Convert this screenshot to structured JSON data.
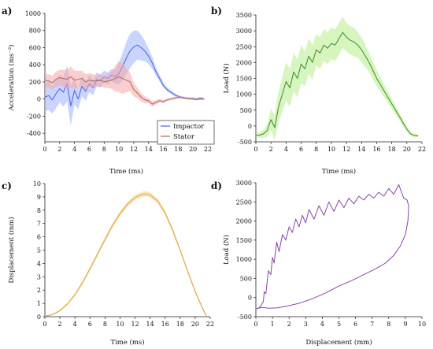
{
  "figure": {
    "panel_labels": [
      "a)",
      "b)",
      "c)",
      "d)"
    ]
  },
  "colors": {
    "impactor": "#4a66d6",
    "impactor_band": "#9db3ff",
    "stator": "#b06a55",
    "stator_band": "#f5a5a5",
    "load": "#3e8a2a",
    "load_band": "#b6ec8a",
    "displacement": "#e0a640",
    "displacement_band": "#f1cf94",
    "hysteresis": "#8a45a8"
  },
  "chart_data": [
    {
      "type": "line",
      "panel": "a)",
      "xlabel": "Time (ms)",
      "ylabel": "Acceleration (ms⁻²)",
      "xlim": [
        0,
        22
      ],
      "ylim": [
        -500,
        1000
      ],
      "xticks": [
        "0",
        "2",
        "4",
        "6",
        "8",
        "10",
        "12",
        "14",
        "16",
        "18",
        "20",
        "22"
      ],
      "yticks": [
        "-400",
        "-200",
        "0",
        "200",
        "400",
        "600",
        "800",
        "1000"
      ],
      "legend": "bottom-right",
      "series": [
        {
          "name": "Impactor",
          "x": [
            0,
            0.5,
            1,
            1.5,
            2,
            2.5,
            3,
            3.5,
            4,
            4.5,
            5,
            5.5,
            6,
            6.5,
            7,
            7.5,
            8,
            8.5,
            9,
            9.5,
            10,
            10.5,
            11,
            11.5,
            12,
            12.5,
            13,
            13.5,
            14,
            14.5,
            15,
            15.5,
            16,
            16.5,
            17,
            17.5,
            18,
            18.5,
            19,
            19.5,
            20,
            20.5,
            21,
            21.5
          ],
          "y": [
            20,
            40,
            -10,
            60,
            120,
            80,
            180,
            -80,
            100,
            0,
            150,
            90,
            180,
            130,
            230,
            210,
            260,
            240,
            280,
            260,
            300,
            380,
            480,
            560,
            610,
            630,
            600,
            560,
            500,
            420,
            320,
            240,
            160,
            110,
            80,
            50,
            30,
            20,
            10,
            5,
            5,
            0,
            10,
            0
          ],
          "spread": [
            160,
            170,
            160,
            170,
            160,
            170,
            210,
            230,
            160,
            120,
            120,
            110,
            100,
            90,
            80,
            80,
            70,
            70,
            70,
            80,
            130,
            160,
            190,
            200,
            190,
            170,
            150,
            120,
            90,
            70,
            50,
            40,
            30,
            25,
            20,
            20,
            15,
            15,
            15,
            15,
            15,
            15,
            15,
            15
          ]
        },
        {
          "name": "Stator",
          "x": [
            0,
            0.5,
            1,
            1.5,
            2,
            2.5,
            3,
            3.5,
            4,
            4.5,
            5,
            5.5,
            6,
            6.5,
            7,
            7.5,
            8,
            8.5,
            9,
            9.5,
            10,
            10.5,
            11,
            11.5,
            12,
            12.5,
            13,
            13.5,
            14,
            14.5,
            15,
            15.5,
            16,
            16.5,
            17,
            17.5,
            18,
            18.5,
            19,
            19.5,
            20,
            20.5,
            21,
            21.5
          ],
          "y": [
            220,
            210,
            190,
            230,
            250,
            240,
            230,
            260,
            220,
            230,
            240,
            200,
            220,
            210,
            210,
            220,
            200,
            210,
            220,
            240,
            260,
            240,
            220,
            200,
            110,
            70,
            20,
            -10,
            -20,
            -60,
            -40,
            -20,
            -30,
            -10,
            0,
            10,
            20,
            15,
            10,
            5,
            0,
            -5,
            0,
            0
          ],
          "spread": [
            70,
            80,
            80,
            90,
            90,
            100,
            110,
            120,
            110,
            100,
            90,
            90,
            80,
            80,
            70,
            70,
            70,
            80,
            100,
            150,
            180,
            180,
            140,
            110,
            80,
            60,
            50,
            40,
            30,
            30,
            25,
            20,
            20,
            15,
            15,
            15,
            15,
            10,
            10,
            10,
            10,
            10,
            10,
            10
          ]
        }
      ]
    },
    {
      "type": "line",
      "panel": "b)",
      "xlabel": "Time (ms)",
      "ylabel": "Load (N)",
      "xlim": [
        0,
        22
      ],
      "ylim": [
        -500,
        3500
      ],
      "xticks": [
        "0",
        "2",
        "4",
        "6",
        "8",
        "10",
        "12",
        "14",
        "16",
        "18",
        "20",
        "22"
      ],
      "yticks": [
        "-500",
        "0",
        "500",
        "1000",
        "1500",
        "2000",
        "2500",
        "3000",
        "3500"
      ],
      "series": [
        {
          "name": "",
          "x": [
            0,
            0.5,
            1,
            1.5,
            2,
            2.5,
            3,
            3.5,
            4,
            4.5,
            5,
            5.5,
            6,
            6.5,
            7,
            7.5,
            8,
            8.5,
            9,
            9.5,
            10,
            10.5,
            11,
            11.5,
            12,
            12.5,
            13,
            13.5,
            14,
            14.5,
            15,
            15.5,
            16,
            16.5,
            17,
            17.5,
            18,
            18.5,
            19,
            19.5,
            20,
            20.5,
            21,
            21.5
          ],
          "y": [
            -300,
            -290,
            -250,
            -150,
            200,
            -50,
            600,
            1000,
            1400,
            1200,
            1700,
            1500,
            1950,
            1800,
            2200,
            2000,
            2400,
            2300,
            2550,
            2450,
            2600,
            2550,
            2750,
            2950,
            2800,
            2700,
            2650,
            2550,
            2400,
            2200,
            2000,
            1750,
            1500,
            1300,
            1100,
            900,
            700,
            500,
            300,
            100,
            -100,
            -250,
            -300,
            -310
          ],
          "spread": [
            60,
            80,
            120,
            200,
            320,
            400,
            500,
            550,
            600,
            600,
            600,
            600,
            600,
            550,
            550,
            550,
            500,
            500,
            500,
            500,
            500,
            500,
            500,
            500,
            450,
            450,
            450,
            400,
            400,
            350,
            300,
            280,
            250,
            220,
            200,
            180,
            160,
            140,
            120,
            100,
            80,
            60,
            50,
            40
          ]
        }
      ]
    },
    {
      "type": "line",
      "panel": "c)",
      "xlabel": "Time (ms)",
      "ylabel": "Displacement (mm)",
      "xlim": [
        0,
        22
      ],
      "ylim": [
        0,
        10
      ],
      "xticks": [
        "0",
        "2",
        "4",
        "6",
        "8",
        "10",
        "12",
        "14",
        "16",
        "18",
        "20",
        "22"
      ],
      "yticks": [
        "0",
        "1",
        "2",
        "3",
        "4",
        "5",
        "6",
        "7",
        "8",
        "9",
        "10"
      ],
      "series": [
        {
          "name": "",
          "x": [
            0,
            1,
            2,
            3,
            4,
            5,
            6,
            7,
            8,
            9,
            10,
            11,
            12,
            13,
            13.6,
            14,
            15,
            16,
            17,
            18,
            19,
            20,
            21,
            21.5
          ],
          "y": [
            0.05,
            0.15,
            0.45,
            0.95,
            1.65,
            2.55,
            3.6,
            4.7,
            5.8,
            6.85,
            7.75,
            8.45,
            8.95,
            9.2,
            9.22,
            9.15,
            8.7,
            7.8,
            6.5,
            5.0,
            3.4,
            1.9,
            0.6,
            0.05
          ],
          "spread": [
            0.05,
            0.06,
            0.08,
            0.1,
            0.12,
            0.14,
            0.16,
            0.17,
            0.18,
            0.19,
            0.2,
            0.2,
            0.2,
            0.2,
            0.2,
            0.2,
            0.2,
            0.19,
            0.18,
            0.17,
            0.16,
            0.15,
            0.12,
            0.1
          ]
        }
      ]
    },
    {
      "type": "line",
      "panel": "d)",
      "xlabel": "Displacement (mm)",
      "ylabel": "Load (N)",
      "xlim": [
        0,
        10
      ],
      "ylim": [
        -500,
        3000
      ],
      "xticks": [
        "0",
        "1",
        "2",
        "3",
        "4",
        "5",
        "6",
        "7",
        "8",
        "9",
        "10"
      ],
      "yticks": [
        "-500",
        "0",
        "500",
        "1000",
        "1500",
        "2000",
        "2500",
        "3000"
      ],
      "series": [
        {
          "name": "",
          "x": [
            0.0,
            0.15,
            0.3,
            0.45,
            0.5,
            0.6,
            0.75,
            0.9,
            1.0,
            1.1,
            1.25,
            1.4,
            1.6,
            1.8,
            2.0,
            2.2,
            2.4,
            2.6,
            2.8,
            3.0,
            3.2,
            3.5,
            3.8,
            4.1,
            4.4,
            4.7,
            5.0,
            5.3,
            5.6,
            5.9,
            6.2,
            6.5,
            6.8,
            7.1,
            7.4,
            7.7,
            8.0,
            8.3,
            8.6,
            8.9,
            9.1,
            9.2,
            9.15,
            9.0,
            8.7,
            8.3,
            7.8,
            7.2,
            6.5,
            5.8,
            5.0,
            4.2,
            3.4,
            2.6,
            1.9,
            1.3,
            0.8,
            0.4,
            0.1,
            0.0
          ],
          "y": [
            -300,
            -280,
            -220,
            -100,
            150,
            100,
            700,
            600,
            1050,
            900,
            1450,
            1200,
            1650,
            1500,
            1850,
            1700,
            2050,
            1850,
            2150,
            1950,
            2300,
            2050,
            2400,
            2150,
            2500,
            2250,
            2550,
            2350,
            2600,
            2450,
            2650,
            2550,
            2700,
            2600,
            2750,
            2650,
            2850,
            2700,
            2950,
            2600,
            2550,
            2400,
            2000,
            1650,
            1350,
            1100,
            900,
            750,
            600,
            450,
            300,
            120,
            -30,
            -150,
            -220,
            -270,
            -280,
            -260,
            -280,
            -300
          ]
        }
      ]
    }
  ]
}
